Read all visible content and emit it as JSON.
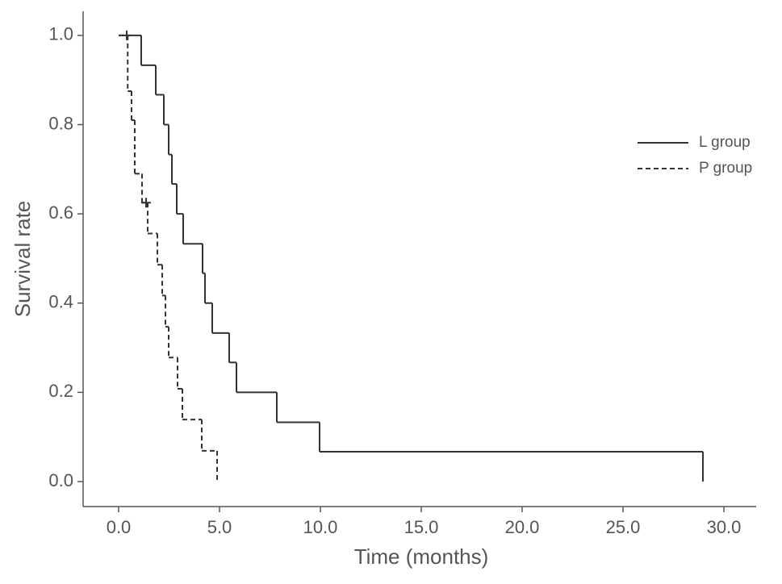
{
  "chart_data": {
    "type": "step",
    "x_label": "Time (months)",
    "y_label": "Survival rate",
    "xlim": [
      -1.76,
      31.6
    ],
    "ylim": [
      -0.056,
      1.054
    ],
    "xticks": [
      {
        "value": 0,
        "label": "0.0"
      },
      {
        "value": 5,
        "label": "5.0"
      },
      {
        "value": 10,
        "label": "10.0"
      },
      {
        "value": 15,
        "label": "15.0"
      },
      {
        "value": 20,
        "label": "20.0"
      },
      {
        "value": 25,
        "label": "25.0"
      },
      {
        "value": 30,
        "label": "30.0"
      }
    ],
    "yticks": [
      {
        "value": 0,
        "label": "0.0"
      },
      {
        "value": 0.2,
        "label": "0.2"
      },
      {
        "value": 0.4,
        "label": "0.4"
      },
      {
        "value": 0.6,
        "label": "0.6"
      },
      {
        "value": 0.8,
        "label": "0.8"
      },
      {
        "value": 1,
        "label": "1.0"
      }
    ],
    "legend": "right",
    "series": [
      {
        "name": "L group",
        "color": "#333333",
        "dash": false,
        "x": [
          0,
          1.12,
          1.84,
          2.24,
          2.48,
          2.64,
          2.88,
          3.2,
          4.16,
          4.28,
          4.64,
          5.48,
          5.84,
          7.84,
          9.96,
          28.96
        ],
        "values": [
          1,
          0.933,
          0.867,
          0.8,
          0.733,
          0.667,
          0.6,
          0.533,
          0.467,
          0.4,
          0.333,
          0.267,
          0.2,
          0.133,
          0.067,
          0
        ],
        "censored": {
          "x": [
            0.4
          ],
          "values": [
            1
          ]
        }
      },
      {
        "name": "P group",
        "color": "#333333",
        "dash": true,
        "x": [
          0,
          0.45,
          0.64,
          0.8,
          1.16,
          1.44,
          1.92,
          2.16,
          2.32,
          2.48,
          2.92,
          3.16,
          4.12,
          4.88
        ],
        "values": [
          1,
          0.875,
          0.81,
          0.69,
          0.625,
          0.556,
          0.486,
          0.417,
          0.347,
          0.278,
          0.208,
          0.139,
          0.069,
          0
        ],
        "censored": {
          "x": [
            1.36
          ],
          "values": [
            0.625
          ]
        }
      }
    ]
  }
}
